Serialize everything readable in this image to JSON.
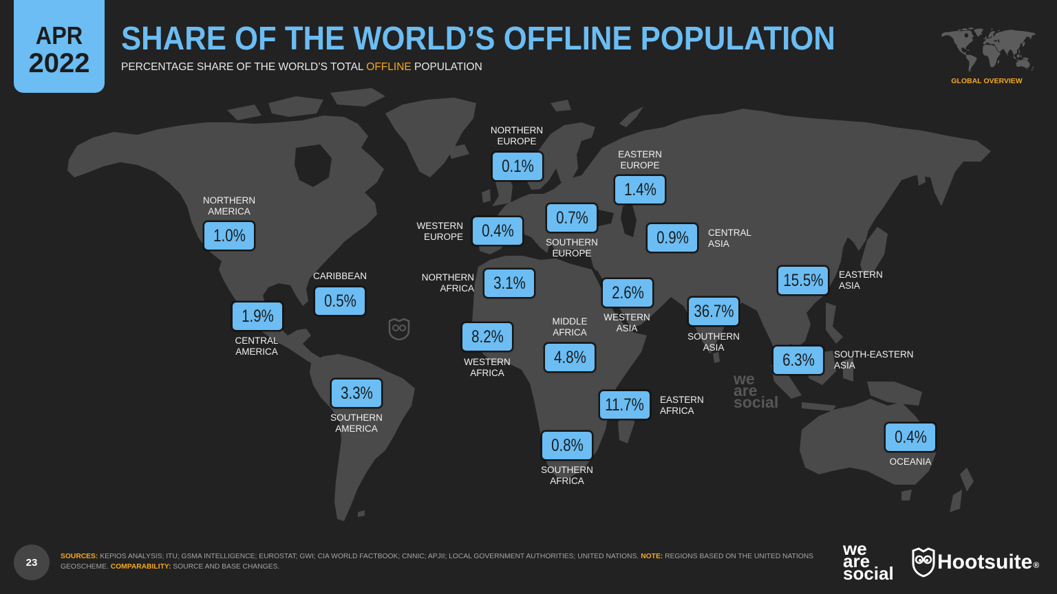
{
  "date_badge": {
    "month": "APR",
    "year": "2022"
  },
  "title": "SHARE OF THE WORLD’S OFFLINE POPULATION",
  "subtitle": {
    "before": "PERCENTAGE SHARE OF THE WORLD’S TOTAL",
    "highlight": "OFFLINE",
    "after": "POPULATION"
  },
  "section_tag": "GLOBAL OVERVIEW",
  "regions": [
    {
      "label_lines": [
        "NORTHERN",
        "EUROPE"
      ],
      "value": "0.1%"
    },
    {
      "label_lines": [
        "EASTERN",
        "EUROPE"
      ],
      "value": "1.4%"
    },
    {
      "label_lines": [
        "NORTHERN",
        "AMERICA"
      ],
      "value": "1.0%"
    },
    {
      "label_lines": [
        "WESTERN",
        "EUROPE"
      ],
      "value": "0.4%"
    },
    {
      "label_lines": [
        "SOUTHERN",
        "EUROPE"
      ],
      "value": "0.7%"
    },
    {
      "label_lines": [
        "CENTRAL",
        "ASIA"
      ],
      "value": "0.9%"
    },
    {
      "label_lines": [
        "CARIBBEAN"
      ],
      "value": "0.5%"
    },
    {
      "label_lines": [
        "NORTHERN",
        "AFRICA"
      ],
      "value": "3.1%"
    },
    {
      "label_lines": [
        "WESTERN",
        "ASIA"
      ],
      "value": "2.6%"
    },
    {
      "label_lines": [
        "EASTERN",
        "ASIA"
      ],
      "value": "15.5%"
    },
    {
      "label_lines": [
        "CENTRAL",
        "AMERICA"
      ],
      "value": "1.9%"
    },
    {
      "label_lines": [
        "SOUTHERN",
        "ASIA"
      ],
      "value": "36.7%"
    },
    {
      "label_lines": [
        "WESTERN",
        "AFRICA"
      ],
      "value": "8.2%"
    },
    {
      "label_lines": [
        "MIDDLE",
        "AFRICA"
      ],
      "value": "4.8%"
    },
    {
      "label_lines": [
        "SOUTH-EASTERN",
        "ASIA"
      ],
      "value": "6.3%"
    },
    {
      "label_lines": [
        "SOUTHERN",
        "AMERICA"
      ],
      "value": "3.3%"
    },
    {
      "label_lines": [
        "EASTERN",
        "AFRICA"
      ],
      "value": "11.7%"
    },
    {
      "label_lines": [
        "SOUTHERN",
        "AFRICA"
      ],
      "value": "0.8%"
    },
    {
      "label_lines": [
        "OCEANIA"
      ],
      "value": "0.4%"
    }
  ],
  "watermark": {
    "lines": [
      "we",
      "are",
      "social"
    ]
  },
  "footer": {
    "page_number": "23",
    "sources_label": "SOURCES:",
    "sources_text": "KEPIOS ANALYSIS; ITU; GSMA INTELLIGENCE; EUROSTAT; GWI; CIA WORLD FACTBOOK; CNNIC; APJII; LOCAL GOVERNMENT AUTHORITIES; UNITED NATIONS.",
    "note_label": "NOTE:",
    "note_text": "REGIONS BASED ON THE UNITED NATIONS GEOSCHEME.",
    "comparability_label": "COMPARABILITY:",
    "comparability_text": "SOURCE AND BASE CHANGES.",
    "we_are_social_lines": [
      "we",
      "are",
      "social"
    ],
    "hootsuite_name": "Hootsuite",
    "hootsuite_mark": "®"
  },
  "colors": {
    "background": "#222222",
    "accent_blue": "#6bbdf3",
    "highlight_orange": "#f7a823",
    "land": "#4a4a4a"
  },
  "icons": {
    "overview_map": "world-map-icon",
    "watermark": "owl-icon",
    "logo": "hootsuite-owl-icon"
  }
}
